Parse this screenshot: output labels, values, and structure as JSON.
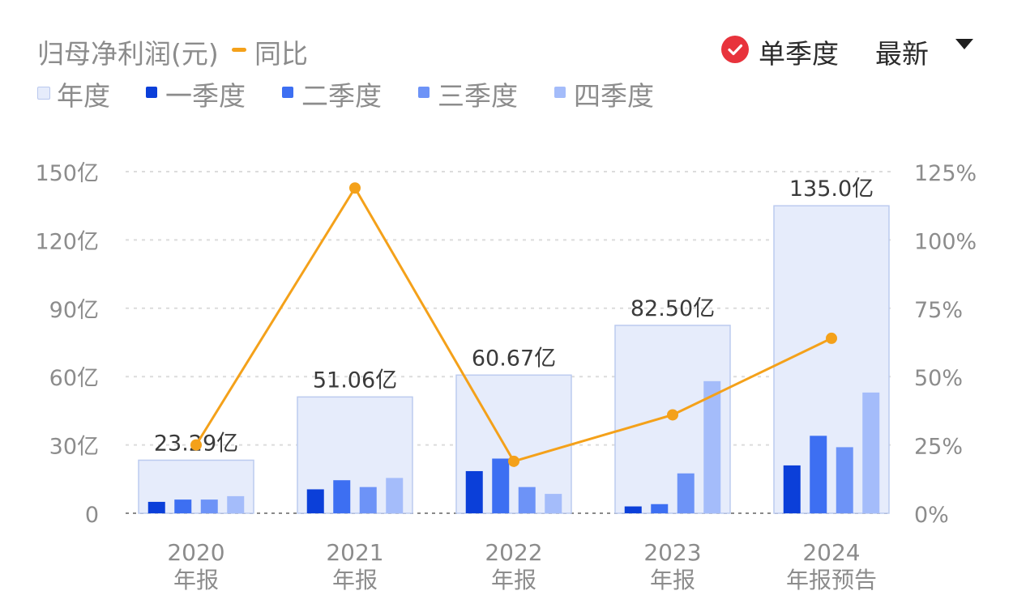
{
  "header": {
    "title": "归母净利润(元)",
    "yoy_label": "同比",
    "toggle_label": "单季度",
    "toggle_checked": true,
    "dropdown_label": "最新"
  },
  "legend": [
    {
      "label": "年度",
      "color": "#e6ecfb",
      "border": "#b9c8ee"
    },
    {
      "label": "一季度",
      "color": "#0b3fd9"
    },
    {
      "label": "二季度",
      "color": "#3d6ff2"
    },
    {
      "label": "三季度",
      "color": "#6d93f7"
    },
    {
      "label": "四季度",
      "color": "#a4bcfa"
    }
  ],
  "colors": {
    "annual_fill": "#e6ecfb",
    "annual_border": "#bccbef",
    "q1": "#0b3fd9",
    "q2": "#3d6ff2",
    "q3": "#6d93f7",
    "q4": "#a4bcfa",
    "yoy_line": "#f4a11a",
    "grid": "#dcdcdc",
    "axis_text": "#8c8c8c",
    "label_text": "#3a3a3a"
  },
  "chart_data": {
    "type": "bar",
    "categories": [
      {
        "year": "2020",
        "sub": "年报"
      },
      {
        "year": "2021",
        "sub": "年报"
      },
      {
        "year": "2022",
        "sub": "年报"
      },
      {
        "year": "2023",
        "sub": "年报"
      },
      {
        "year": "2024",
        "sub": "年报预告"
      }
    ],
    "annual": [
      23.29,
      51.06,
      60.67,
      82.5,
      135.0
    ],
    "annual_labels": [
      "23.29亿",
      "51.06亿",
      "60.67亿",
      "82.50亿",
      "135.0亿"
    ],
    "quarters": [
      [
        5,
        6,
        6,
        7.5
      ],
      [
        10.5,
        14.5,
        11.5,
        15.5
      ],
      [
        18.5,
        24,
        11.5,
        8.5
      ],
      [
        3,
        4,
        17.5,
        58
      ],
      [
        21,
        34,
        29,
        53
      ]
    ],
    "yoy_percent": [
      25,
      119,
      19,
      36,
      64
    ],
    "y_left": {
      "min": 0,
      "max": 150,
      "ticks": [
        0,
        30,
        60,
        90,
        120,
        150
      ],
      "tick_labels": [
        "0",
        "30亿",
        "60亿",
        "90亿",
        "120亿",
        "150亿"
      ]
    },
    "y_right": {
      "min": 0,
      "max": 125,
      "ticks": [
        0,
        25,
        50,
        75,
        100,
        125
      ],
      "tick_labels": [
        "0%",
        "25%",
        "50%",
        "75%",
        "100%",
        "125%"
      ]
    },
    "grid": true
  }
}
